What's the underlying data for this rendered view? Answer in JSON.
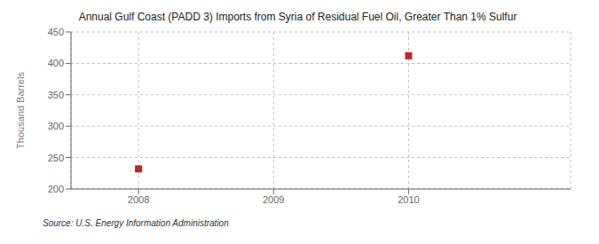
{
  "chart_data": {
    "type": "scatter",
    "title": "Annual Gulf Coast (PADD 3) Imports from Syria of Residual Fuel Oil, Greater Than 1% Sulfur",
    "ylabel": "Thousand Barrels",
    "annotation": "Source: U.S. Energy Information Administration",
    "x": [
      2008,
      2010
    ],
    "values": [
      232,
      412
    ],
    "color": "#cc2222",
    "marker": "square",
    "xlim": [
      2007.5,
      2011.2
    ],
    "xticks": [
      2008,
      2009,
      2010
    ],
    "ylim": [
      200,
      450
    ],
    "yticks": [
      200,
      250,
      300,
      350,
      400,
      450
    ],
    "grid": true
  }
}
